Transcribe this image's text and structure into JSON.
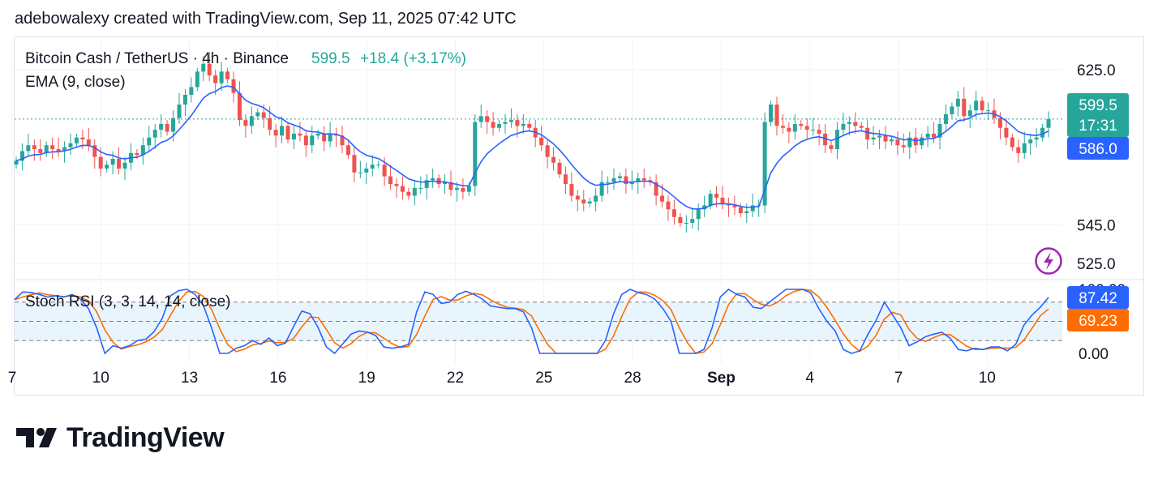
{
  "header": {
    "credit": "adebowalexy created with TradingView.com, Sep 11, 2025 07:42 UTC"
  },
  "legend": {
    "symbol": "Bitcoin Cash / TetherUS · 4h · Binance",
    "price": "599.5",
    "change": "+18.4 (+3.17%)",
    "ema": "EMA (9, close)",
    "stoch": "Stoch RSI (3, 3, 14, 14, close)"
  },
  "badges": {
    "price": "599.5",
    "countdown": "17:31",
    "ema": "586.0",
    "k": "87.42",
    "d": "69.23"
  },
  "logo": {
    "text": "TradingView"
  },
  "colors": {
    "up": "#26a69a",
    "down": "#ef5350",
    "ema": "#2962ff",
    "k": "#2962ff",
    "d": "#ff6d00",
    "band": "#e3f2fd",
    "accent": "#9c27b0"
  },
  "chart_data": [
    {
      "type": "candlestick",
      "title": "Bitcoin Cash / TetherUS · 4h · Binance",
      "x_ticks": [
        "7",
        "10",
        "13",
        "16",
        "19",
        "22",
        "25",
        "28",
        "Sep",
        "4",
        "7",
        "10"
      ],
      "y_ticks": [
        625.0,
        545.0,
        525.0
      ],
      "ylim": [
        518,
        640
      ],
      "last_price": 599.5,
      "ema_last": 586.0,
      "grid": true,
      "close_series": [
        578,
        583,
        586,
        584,
        582,
        586,
        584,
        583,
        585,
        587,
        590,
        589,
        586,
        580,
        574,
        576,
        579,
        574,
        577,
        582,
        581,
        586,
        590,
        594,
        597,
        593,
        600,
        607,
        612,
        616,
        624,
        628,
        622,
        618,
        624,
        620,
        613,
        599,
        596,
        601,
        603,
        600,
        594,
        591,
        596,
        589,
        592,
        591,
        586,
        591,
        592,
        588,
        592,
        591,
        586,
        581,
        572,
        572,
        574,
        576,
        576,
        570,
        566,
        565,
        562,
        560,
        564,
        564,
        568,
        569,
        566,
        567,
        563,
        564,
        562,
        565,
        598,
        601,
        598,
        595,
        597,
        598,
        599,
        596,
        597,
        595,
        590,
        586,
        580,
        577,
        571,
        566,
        560,
        558,
        556,
        557,
        560,
        567,
        567,
        569,
        570,
        566,
        567,
        569,
        568,
        567,
        560,
        557,
        553,
        549,
        546,
        546,
        548,
        553,
        555,
        561,
        559,
        556,
        555,
        554,
        551,
        552,
        555,
        555,
        598,
        607,
        596,
        595,
        593,
        597,
        596,
        594,
        594,
        592,
        586,
        584,
        594,
        597,
        598,
        596,
        595,
        589,
        590,
        591,
        588,
        589,
        586,
        585,
        590,
        586,
        590,
        592,
        590,
        597,
        602,
        606,
        610,
        601,
        604,
        609,
        604,
        604,
        600,
        595,
        590,
        585,
        582,
        587,
        589,
        590,
        595,
        599.5
      ],
      "ema_last_value": 586.0
    },
    {
      "type": "line",
      "title": "Stoch RSI (3, 3, 14, 14, close)",
      "y_ticks": [
        100.0,
        0.0
      ],
      "ylim": [
        0,
        100
      ],
      "bands": [
        80,
        50,
        20
      ],
      "series": [
        {
          "name": "K",
          "last": 87.42,
          "values": [
            84,
            96,
            95,
            92,
            88,
            90,
            88,
            92,
            85,
            70,
            40,
            0,
            12,
            8,
            12,
            20,
            22,
            34,
            55,
            90,
            98,
            100,
            92,
            75,
            40,
            0,
            0,
            8,
            12,
            20,
            14,
            24,
            12,
            16,
            42,
            66,
            62,
            40,
            10,
            0,
            15,
            30,
            35,
            33,
            28,
            10,
            8,
            10,
            14,
            65,
            96,
            92,
            78,
            80,
            92,
            97,
            92,
            85,
            74,
            72,
            70,
            70,
            65,
            40,
            0,
            0,
            0,
            0,
            0,
            0,
            0,
            0,
            20,
            62,
            92,
            100,
            95,
            92,
            85,
            70,
            50,
            0,
            0,
            0,
            6,
            40,
            88,
            100,
            92,
            88,
            72,
            70,
            80,
            90,
            100,
            100,
            100,
            95,
            70,
            50,
            35,
            6,
            0,
            4,
            30,
            52,
            80,
            60,
            40,
            12,
            18,
            26,
            30,
            33,
            24,
            6,
            4,
            8,
            6,
            10,
            10,
            4,
            14,
            44,
            60,
            72,
            87.42
          ]
        },
        {
          "name": "D",
          "last": 69.23
        }
      ]
    }
  ]
}
